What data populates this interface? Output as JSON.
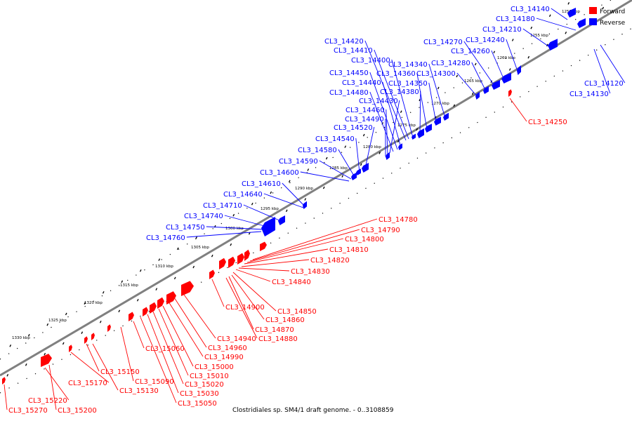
{
  "caption": "Clostridiales sp. SM4/1 draft genome. - 0..3108859",
  "legend": [
    {
      "label": "Forward",
      "color": "#ff0000"
    },
    {
      "label": "Reverse",
      "color": "#0000ff"
    }
  ],
  "colors": {
    "forward": "#ff0000",
    "reverse": "#0000ff",
    "backbone": "#808080"
  },
  "scale_labels": [
    "1250 kbp",
    "1255 kbp",
    "1260 kbp",
    "1265 kbp",
    "1270 kbp",
    "1275 kbp",
    "1280 kbp",
    "1285 kbp",
    "1290 kbp",
    "1295 kbp",
    "1300 kbp",
    "1305 kbp",
    "1310 kbp",
    "1315 kbp",
    "1320 kbp",
    "1325 kbp",
    "1330 kbp"
  ],
  "reverse_genes": [
    "CL3_14140",
    "CL3_14180",
    "CL3_14210",
    "CL3_14240",
    "CL3_14260",
    "CL3_14270",
    "CL3_14280",
    "CL3_14300",
    "CL3_14340",
    "CL3_14350",
    "CL3_14360",
    "CL3_14380",
    "CL3_14400",
    "CL3_14410",
    "CL3_14420",
    "CL3_14440",
    "CL3_14450",
    "CL3_14480",
    "CL3_14430",
    "CL3_14460",
    "CL3_14490",
    "CL3_14520",
    "CL3_14540",
    "CL3_14580",
    "CL3_14590",
    "CL3_14600",
    "CL3_14610",
    "CL3_14640",
    "CL3_14710",
    "CL3_14740",
    "CL3_14750",
    "CL3_14760",
    "CL3_14120",
    "CL3_14130"
  ],
  "forward_genes": [
    "CL3_14250",
    "CL3_14780",
    "CL3_14790",
    "CL3_14800",
    "CL3_14810",
    "CL3_14820",
    "CL3_14830",
    "CL3_14840",
    "CL3_14850",
    "CL3_14860",
    "CL3_14870",
    "CL3_14880",
    "CL3_14900",
    "CL3_14940",
    "CL3_14960",
    "CL3_14990",
    "CL3_15000",
    "CL3_15010",
    "CL3_15020",
    "CL3_15030",
    "CL3_15050",
    "CL3_15060",
    "CL3_15090",
    "CL3_15130",
    "CL3_15150",
    "CL3_15170",
    "CL3_15200",
    "CL3_15220",
    "CL3_15270"
  ]
}
